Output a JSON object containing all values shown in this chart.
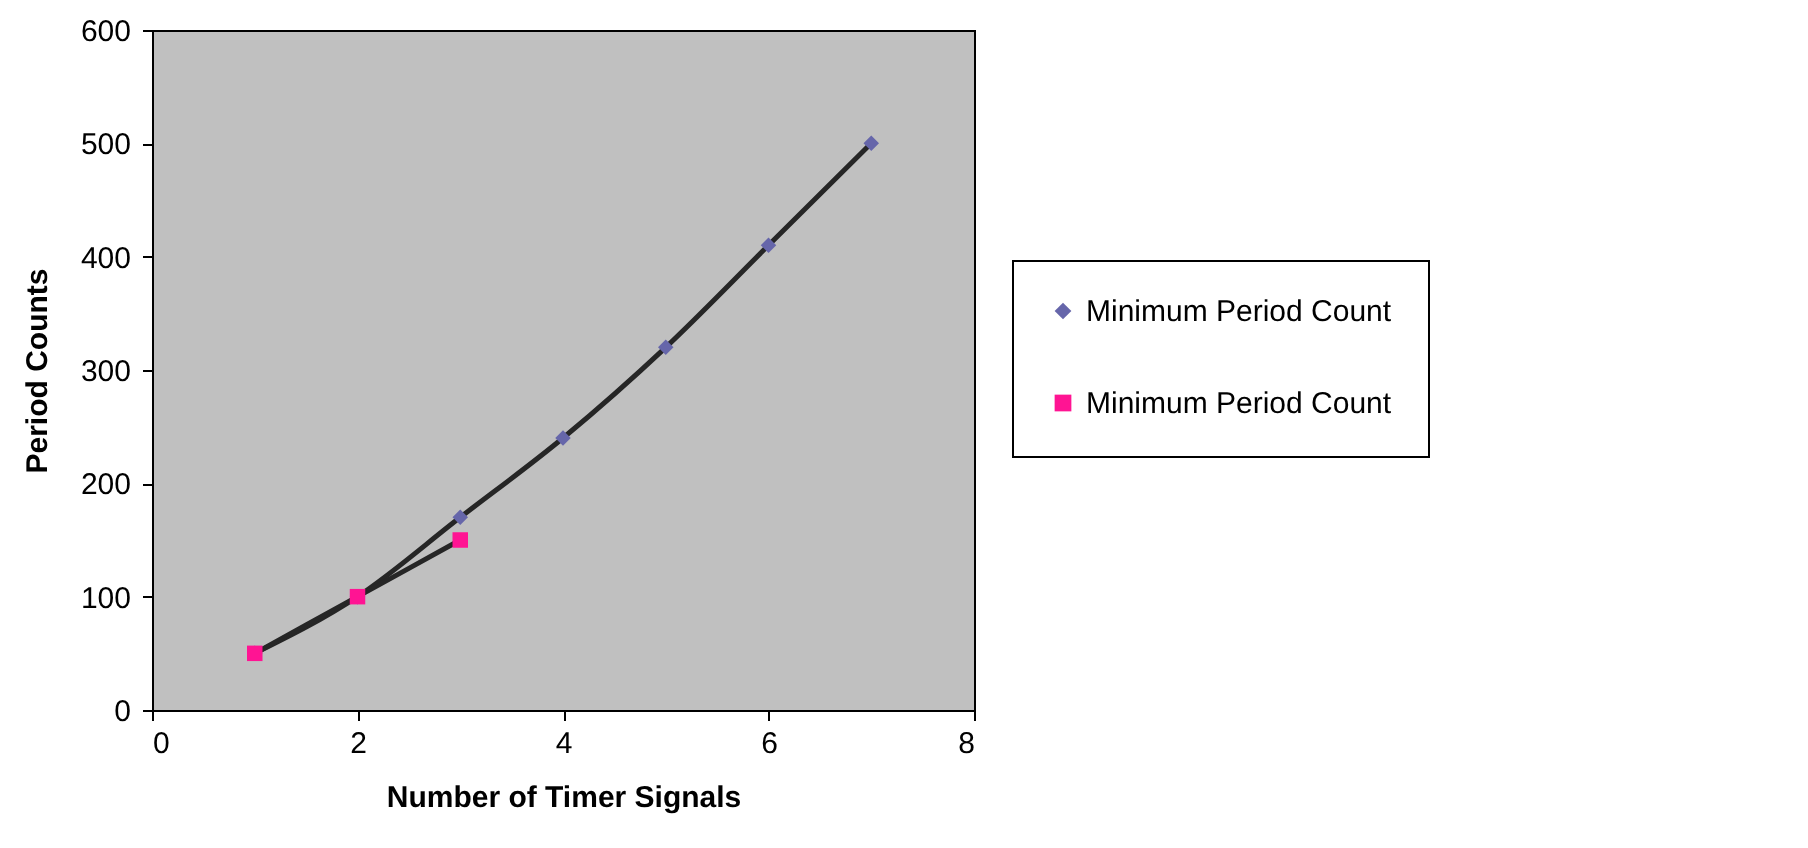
{
  "chart_data": {
    "type": "line",
    "xlabel": "Number of Timer Signals",
    "ylabel": "Period Counts",
    "x": [
      1,
      2,
      3,
      4,
      5,
      6,
      7
    ],
    "series": [
      {
        "name": "Minimum Period Count",
        "color": "#6666aa",
        "marker": "diamond",
        "values": [
          50,
          100,
          170,
          240,
          320,
          410,
          500
        ]
      },
      {
        "name": "Minimum Period Count",
        "color": "#ff1493",
        "marker": "square",
        "values": [
          50,
          100,
          150,
          null,
          null,
          null,
          null
        ]
      }
    ],
    "xlim": [
      0,
      8
    ],
    "xticks": [
      0,
      2,
      4,
      6,
      8
    ],
    "ylim": [
      0,
      600
    ],
    "yticks": [
      0,
      100,
      200,
      300,
      400,
      500,
      600
    ],
    "grid": false,
    "legend": "right",
    "line_style": "solid"
  }
}
